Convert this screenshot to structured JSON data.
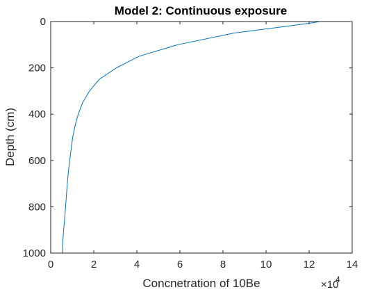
{
  "chart_data": {
    "type": "line",
    "title": "Model 2: Continuous exposure",
    "xlabel": "Concnetration of 10Be",
    "ylabel": "Depth (cm)",
    "x_exponent_base": "×10",
    "x_exponent_power": "4",
    "xlim": [
      0,
      14
    ],
    "ylim": [
      0,
      1000
    ],
    "y_reversed": true,
    "x_ticks": [
      0,
      2,
      4,
      6,
      8,
      10,
      12,
      14
    ],
    "y_ticks": [
      0,
      200,
      400,
      600,
      800,
      1000
    ],
    "x_tick_labels": [
      "0",
      "2",
      "4",
      "6",
      "8",
      "10",
      "12",
      "14"
    ],
    "y_tick_labels": [
      "0",
      "200",
      "400",
      "600",
      "800",
      "1000"
    ],
    "grid": false,
    "series": [
      {
        "color": "#0072bd",
        "x": [
          12.5,
          12.2,
          11.0,
          8.5,
          5.9,
          4.1,
          3.05,
          2.25,
          1.8,
          1.48,
          1.28,
          1.13,
          1.02,
          0.95,
          0.88,
          0.82,
          0.77,
          0.73,
          0.69,
          0.65,
          0.6,
          0.56,
          0.53
        ],
        "y": [
          0,
          5,
          20,
          50,
          100,
          150,
          200,
          250,
          300,
          350,
          400,
          450,
          500,
          550,
          600,
          650,
          700,
          750,
          800,
          850,
          900,
          950,
          1000
        ]
      }
    ]
  }
}
